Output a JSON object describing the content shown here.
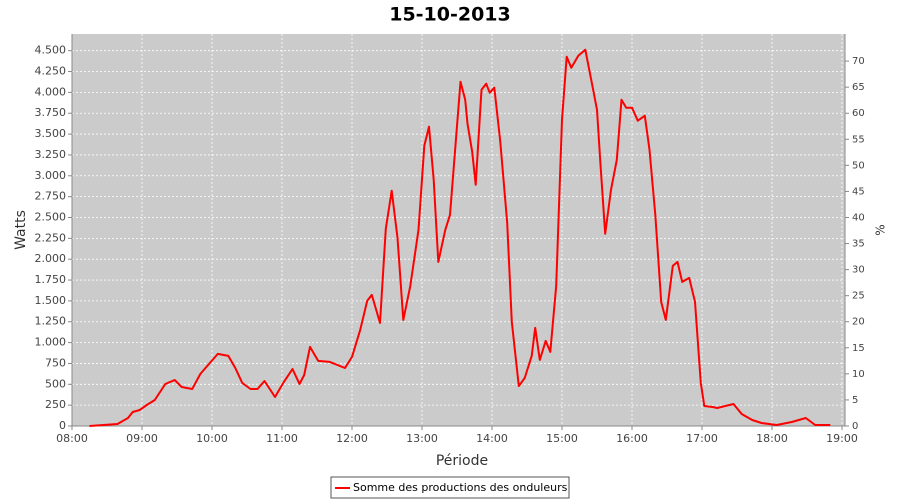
{
  "chart_data": {
    "type": "line",
    "title": "15-10-2013",
    "x_label": "Période",
    "y_label": "Watts",
    "y2_label": "%",
    "x": [
      "08:15",
      "08:39",
      "08:48",
      "08:52",
      "08:58",
      "09:04",
      "09:11",
      "09:20",
      "09:28",
      "09:34",
      "09:43",
      "09:50",
      "09:56",
      "10:05",
      "10:14",
      "10:20",
      "10:26",
      "10:33",
      "10:39",
      "10:45",
      "10:54",
      "11:01",
      "11:09",
      "11:15",
      "11:19",
      "11:24",
      "11:31",
      "11:41",
      "11:54",
      "12:00",
      "12:07",
      "12:13",
      "12:17",
      "12:24",
      "12:29",
      "12:34",
      "12:39",
      "12:44",
      "12:50",
      "12:57",
      "13:02",
      "13:06",
      "13:10",
      "13:14",
      "13:20",
      "13:24",
      "13:33",
      "13:37",
      "13:39",
      "13:43",
      "13:46",
      "13:51",
      "13:55",
      "13:58",
      "14:02",
      "14:07",
      "14:13",
      "14:17",
      "14:23",
      "14:28",
      "14:34",
      "14:37",
      "14:41",
      "14:46",
      "14:50",
      "14:55",
      "15:00",
      "15:04",
      "15:08",
      "15:14",
      "15:20",
      "15:25",
      "15:30",
      "15:33",
      "15:37",
      "15:42",
      "15:47",
      "15:51",
      "15:55",
      "16:00",
      "16:05",
      "16:11",
      "16:15",
      "16:20",
      "16:25",
      "16:29",
      "16:35",
      "16:39",
      "16:43",
      "16:49",
      "16:54",
      "16:59",
      "17:02",
      "17:09",
      "17:13",
      "17:20",
      "17:27",
      "17:34",
      "17:43",
      "17:51",
      "18:04",
      "18:17",
      "18:29",
      "18:37",
      "18:50"
    ],
    "series": [
      {
        "name": "Somme des productions des onduleurs",
        "color": "#ff0000",
        "values": [
          0,
          24,
          96,
          168,
          192,
          252,
          312,
          504,
          552,
          468,
          444,
          624,
          720,
          864,
          840,
          696,
          516,
          444,
          444,
          540,
          348,
          516,
          684,
          504,
          612,
          948,
          780,
          768,
          696,
          828,
          1152,
          1500,
          1572,
          1236,
          2364,
          2820,
          2256,
          1272,
          1680,
          2352,
          3360,
          3588,
          2952,
          1968,
          2352,
          2532,
          4128,
          3912,
          3624,
          3288,
          2892,
          4032,
          4104,
          3996,
          4056,
          3420,
          2436,
          1248,
          480,
          576,
          840,
          1176,
          792,
          1020,
          888,
          1680,
          3672,
          4428,
          4296,
          4440,
          4512,
          4152,
          3792,
          3132,
          2304,
          2832,
          3192,
          3912,
          3816,
          3816,
          3660,
          3720,
          3312,
          2532,
          1488,
          1272,
          1920,
          1968,
          1728,
          1776,
          1488,
          516,
          240,
          228,
          216,
          240,
          264,
          144,
          72,
          36,
          12,
          48,
          96,
          12,
          12
        ]
      }
    ],
    "xlim": [
      "08:00",
      "19:00"
    ],
    "xticks": [
      "08:00",
      "09:00",
      "10:00",
      "11:00",
      "12:00",
      "13:00",
      "14:00",
      "15:00",
      "16:00",
      "17:00",
      "18:00",
      "19:00"
    ],
    "ylim": [
      0,
      4700
    ],
    "yticks": [
      0,
      250,
      500,
      750,
      {
        "value": 1000,
        "label": "1.000"
      },
      {
        "value": 1250,
        "label": "1.250"
      },
      {
        "value": 1500,
        "label": "1.500"
      },
      {
        "value": 1750,
        "label": "1.750"
      },
      {
        "value": 2000,
        "label": "2.000"
      },
      {
        "value": 2250,
        "label": "2.250"
      },
      {
        "value": 2500,
        "label": "2.500"
      },
      {
        "value": 2750,
        "label": "2.750"
      },
      {
        "value": 3000,
        "label": "3.000"
      },
      {
        "value": 3250,
        "label": "3.250"
      },
      {
        "value": 3500,
        "label": "3.500"
      },
      {
        "value": 3750,
        "label": "3.750"
      },
      {
        "value": 4000,
        "label": "4.000"
      },
      {
        "value": 4250,
        "label": "4.250"
      },
      {
        "value": 4500,
        "label": "4.500"
      }
    ],
    "y2lim": [
      0,
      75.2
    ],
    "y2ticks": [
      0,
      5,
      10,
      15,
      20,
      25,
      30,
      35,
      40,
      45,
      50,
      55,
      60,
      65,
      70
    ],
    "grid": true,
    "legend": "bottom",
    "plot_background": "#cbcbcb"
  }
}
